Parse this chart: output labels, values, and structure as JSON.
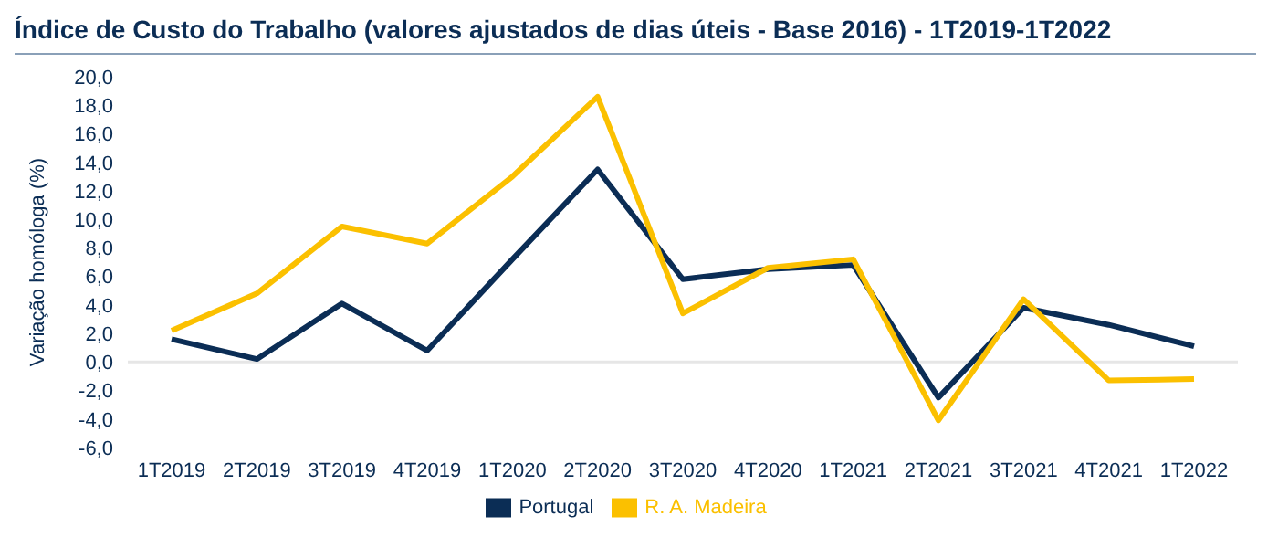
{
  "chart_data": {
    "type": "line",
    "title": "Índice de Custo do Trabalho (valores ajustados de dias úteis - Base 2016) - 1T2019-1T2022",
    "ylabel": "Variação homóloga (%)",
    "categories": [
      "1T2019",
      "2T2019",
      "3T2019",
      "4T2019",
      "1T2020",
      "2T2020",
      "3T2020",
      "4T2020",
      "1T2021",
      "2T2021",
      "3T2021",
      "4T2021",
      "1T2022"
    ],
    "series": [
      {
        "name": "Portugal",
        "color": "#0b2d55",
        "values": [
          1.6,
          0.2,
          4.1,
          0.8,
          7.2,
          13.5,
          5.8,
          6.5,
          6.8,
          -2.5,
          3.8,
          2.6,
          1.1
        ]
      },
      {
        "name": "R. A. Madeira",
        "color": "#fbc000",
        "values": [
          2.2,
          4.8,
          9.5,
          8.3,
          13.0,
          18.6,
          3.4,
          6.6,
          7.2,
          -4.1,
          4.4,
          -1.3,
          -1.2
        ]
      }
    ],
    "ylim": [
      -6,
      20
    ],
    "yticks": [
      {
        "value": -6,
        "label": "-6,0"
      },
      {
        "value": -4,
        "label": "-4,0"
      },
      {
        "value": -2,
        "label": "-2,0"
      },
      {
        "value": 0,
        "label": "0,0"
      },
      {
        "value": 2,
        "label": "2,0"
      },
      {
        "value": 4,
        "label": "4,0"
      },
      {
        "value": 6,
        "label": "6,0"
      },
      {
        "value": 8,
        "label": "8,0"
      },
      {
        "value": 10,
        "label": "10,0"
      },
      {
        "value": 12,
        "label": "12,0"
      },
      {
        "value": 14,
        "label": "14,0"
      },
      {
        "value": 16,
        "label": "16,0"
      },
      {
        "value": 18,
        "label": "18,0"
      },
      {
        "value": 20,
        "label": "20,0"
      }
    ],
    "ref_lines": [
      {
        "axis": "y",
        "value": 0,
        "color": "#e6e6e6"
      }
    ],
    "grid": false,
    "legend": "bottom",
    "marker": "none",
    "line_style": "solid"
  }
}
